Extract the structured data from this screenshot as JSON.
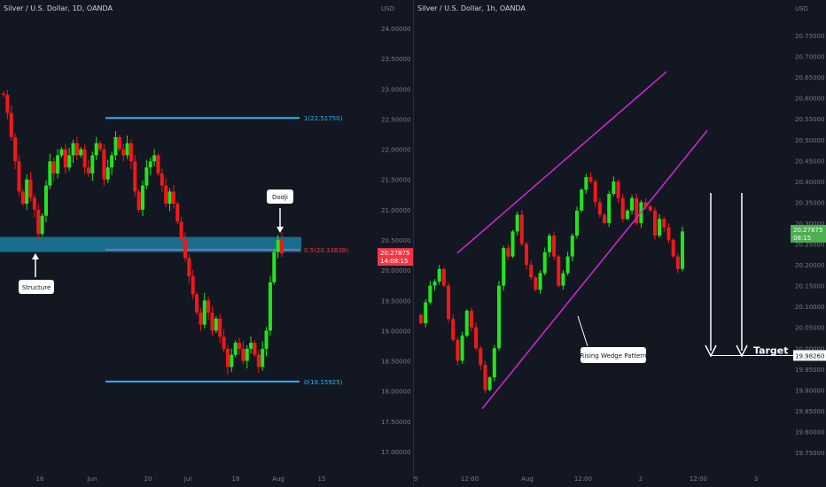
{
  "panels": [
    {
      "title": "Silver / U.S. Dollar, 1D, OANDA",
      "currency": "USD",
      "y_ticks": [
        "24.00000",
        "23.50000",
        "23.00000",
        "22.50000",
        "22.00000",
        "21.50000",
        "21.00000",
        "20.50000",
        "20.00000",
        "19.50000",
        "19.00000",
        "18.50000",
        "18.00000",
        "17.50000",
        "17.00000"
      ],
      "x_ticks": [
        "16",
        "Jun",
        "20",
        "Jul",
        "18",
        "Aug",
        "15"
      ],
      "price_label": {
        "price": "20.27875",
        "time": "14:08:15",
        "color": "#f23645"
      },
      "fib": {
        "top": "1(22.51750)",
        "mid": "0.5(20.33838)",
        "bottom": "0(18.15925)"
      },
      "callouts": {
        "structure": "Structure",
        "doji": "Dodji"
      }
    },
    {
      "title": "Silver / U.S. Dollar, 1h, OANDA",
      "currency": "USD",
      "y_ticks": [
        "20.75000",
        "20.70000",
        "20.65000",
        "20.60000",
        "20.55000",
        "20.50000",
        "20.45000",
        "20.40000",
        "20.35000",
        "20.30000",
        "20.25000",
        "20.20000",
        "20.15000",
        "20.10000",
        "20.05000",
        "20.00000",
        "19.95000",
        "19.90000",
        "19.85000",
        "19.80000",
        "19.75000"
      ],
      "x_ticks": [
        "9",
        "12:00",
        "Aug",
        "12:00",
        "2",
        "12:00",
        "3"
      ],
      "price_label": {
        "price": "20.27875",
        "time": "08:15",
        "color": "#4caf50"
      },
      "target_label": {
        "price": "19.98260"
      },
      "callouts": {
        "wedge": "Rising Wedge Pattern",
        "target": "Target"
      }
    }
  ],
  "chart_data": [
    {
      "type": "candlestick",
      "title": "Silver / U.S. Dollar, 1D, OANDA",
      "ylabel": "USD",
      "ylim": [
        16.7,
        24.6
      ],
      "annotations": [
        "Structure",
        "Dodji",
        "1(22.51750)",
        "0.5(20.33838)",
        "0(18.15925)"
      ],
      "fib_levels": {
        "1": 22.5175,
        "0.5": 20.33838,
        "0": 18.15925
      },
      "structure_zone": [
        20.3,
        20.55
      ],
      "last_price": 20.27875,
      "series": [
        {
          "closes": [
            22.9,
            22.6,
            22.2,
            21.8,
            21.3,
            21.1,
            21.5,
            21.2,
            21.0,
            20.6,
            20.9,
            21.4,
            21.8,
            21.6,
            21.9,
            22.0,
            21.7,
            21.9,
            22.1,
            21.9,
            22.0,
            21.7,
            21.6,
            21.9,
            22.1,
            22.0,
            21.5,
            21.7,
            21.9,
            22.2,
            22.0,
            21.9,
            22.1,
            21.8,
            21.3,
            21.0,
            21.4,
            21.7,
            21.8,
            21.9,
            21.6,
            21.4,
            21.1,
            21.3,
            21.1,
            20.8,
            20.5,
            20.2,
            19.9,
            19.6,
            19.3,
            19.1,
            19.5,
            19.3,
            19.0,
            19.2,
            18.9,
            18.7,
            18.4,
            18.6,
            18.8,
            18.7,
            18.5,
            18.7,
            18.8,
            18.6,
            18.4,
            18.7,
            19.0,
            19.8,
            20.3,
            20.5,
            20.28
          ]
        }
      ]
    },
    {
      "type": "candlestick",
      "title": "Silver / U.S. Dollar, 1h, OANDA",
      "ylabel": "USD",
      "ylim": [
        19.73,
        20.79
      ],
      "annotations": [
        "Rising Wedge Pattern",
        "Target"
      ],
      "wedge_upper": {
        "from": 20.228,
        "to": 20.663
      },
      "wedge_lower": {
        "from": 19.855,
        "to": 20.522
      },
      "target": 19.9826,
      "last_price": 20.27875,
      "series": [
        {
          "closes": [
            20.06,
            20.11,
            20.15,
            20.16,
            20.19,
            20.15,
            20.07,
            20.02,
            19.97,
            20.03,
            20.09,
            20.05,
            20.0,
            19.96,
            19.9,
            19.93,
            20.0,
            20.15,
            20.24,
            20.22,
            20.28,
            20.32,
            20.25,
            20.2,
            20.17,
            20.14,
            20.18,
            20.23,
            20.27,
            20.22,
            20.15,
            20.18,
            20.22,
            20.27,
            20.33,
            20.38,
            20.41,
            20.4,
            20.35,
            20.32,
            20.3,
            20.37,
            20.4,
            20.36,
            20.31,
            20.33,
            20.36,
            20.3,
            20.35,
            20.34,
            20.33,
            20.27,
            20.31,
            20.29,
            20.26,
            20.22,
            20.19,
            20.28
          ]
        }
      ]
    }
  ]
}
